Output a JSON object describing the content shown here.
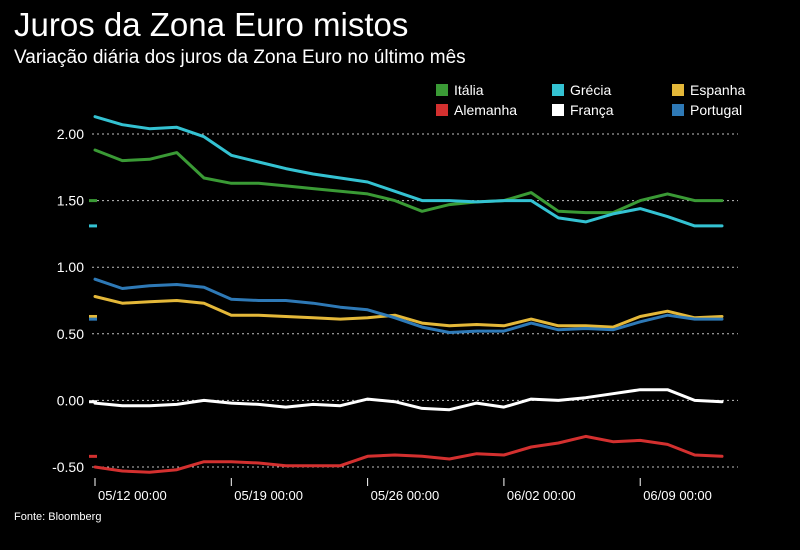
{
  "title": "Juros da Zona Euro mistos",
  "subtitle": "Variação diária dos juros da Zona Euro no último mês",
  "source": "Fonte: Bloomberg",
  "chart_data": {
    "type": "line",
    "title": "Juros da Zona Euro mistos",
    "subtitle": "Variação diária dos juros da Zona Euro no último mês",
    "xlabel": "",
    "ylabel": "",
    "ylim": [
      -0.5,
      2.0
    ],
    "yticks": [
      "2.00",
      "1.50",
      "1.00",
      "0.50",
      "0.00",
      "-0.50"
    ],
    "ytick_values": [
      2.0,
      1.5,
      1.0,
      0.5,
      0.0,
      -0.5
    ],
    "xticks": [
      "05/12 00:00",
      "05/19 00:00",
      "05/26 00:00",
      "06/02 00:00",
      "06/09 00:00"
    ],
    "xtick_index": [
      0,
      5,
      10,
      15,
      20
    ],
    "x_count": 24,
    "grid": true,
    "legend_position": "top-right",
    "series": [
      {
        "name": "Itália",
        "color": "#3a9a35",
        "values": [
          1.88,
          1.8,
          1.81,
          1.86,
          1.67,
          1.63,
          1.63,
          1.61,
          1.59,
          1.57,
          1.55,
          1.5,
          1.42,
          1.47,
          1.49,
          1.5,
          1.56,
          1.42,
          1.41,
          1.41,
          1.5,
          1.55,
          1.5,
          1.5
        ]
      },
      {
        "name": "Grécia",
        "color": "#34c2d2",
        "values": [
          2.13,
          2.07,
          2.04,
          2.05,
          1.98,
          1.84,
          1.79,
          1.74,
          1.7,
          1.67,
          1.64,
          1.57,
          1.5,
          1.5,
          1.49,
          1.5,
          1.5,
          1.37,
          1.34,
          1.4,
          1.44,
          1.38,
          1.31,
          1.31
        ]
      },
      {
        "name": "Espanha",
        "color": "#e4b839",
        "values": [
          0.78,
          0.73,
          0.74,
          0.75,
          0.73,
          0.64,
          0.64,
          0.63,
          0.62,
          0.61,
          0.62,
          0.64,
          0.58,
          0.56,
          0.57,
          0.56,
          0.61,
          0.56,
          0.56,
          0.55,
          0.63,
          0.67,
          0.62,
          0.63
        ]
      },
      {
        "name": "Portugal",
        "color": "#2e79b6",
        "values": [
          0.91,
          0.84,
          0.86,
          0.87,
          0.85,
          0.76,
          0.75,
          0.75,
          0.73,
          0.7,
          0.68,
          0.62,
          0.55,
          0.51,
          0.52,
          0.52,
          0.58,
          0.53,
          0.54,
          0.53,
          0.59,
          0.64,
          0.61,
          0.61
        ]
      },
      {
        "name": "Alemanha",
        "color": "#d3302f",
        "values": [
          -0.5,
          -0.53,
          -0.54,
          -0.52,
          -0.46,
          -0.46,
          -0.47,
          -0.49,
          -0.49,
          -0.49,
          -0.42,
          -0.41,
          -0.42,
          -0.44,
          -0.4,
          -0.41,
          -0.35,
          -0.32,
          -0.27,
          -0.31,
          -0.3,
          -0.33,
          -0.41,
          -0.42
        ]
      },
      {
        "name": "França",
        "color": "#ffffff",
        "values": [
          -0.02,
          -0.04,
          -0.04,
          -0.03,
          0.0,
          -0.02,
          -0.03,
          -0.05,
          -0.03,
          -0.04,
          0.01,
          -0.01,
          -0.06,
          -0.07,
          -0.02,
          -0.05,
          0.01,
          0.0,
          0.02,
          0.05,
          0.08,
          0.08,
          0.0,
          -0.01
        ]
      }
    ],
    "legend_order": [
      "Itália",
      "Grécia",
      "Espanha",
      "Alemanha",
      "França",
      "Portugal"
    ]
  }
}
